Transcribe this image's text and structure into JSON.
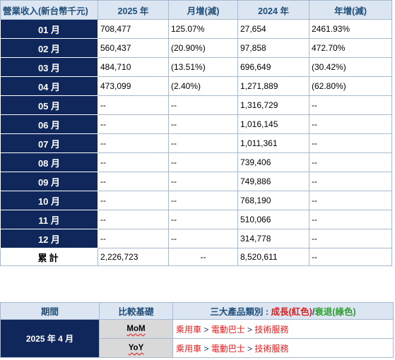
{
  "revenue": {
    "headers": [
      "營業收入(新台幣千元)",
      "2025 年",
      "月增(減)",
      "2024 年",
      "年增(減)"
    ],
    "rows": [
      {
        "month": "01 月",
        "y2025": "708,477",
        "mom": "125.07%",
        "y2024": "27,654",
        "yoy": "2461.93%"
      },
      {
        "month": "02 月",
        "y2025": "560,437",
        "mom": "(20.90%)",
        "y2024": "97,858",
        "yoy": "472.70%"
      },
      {
        "month": "03 月",
        "y2025": "484,710",
        "mom": "(13.51%)",
        "y2024": "696,649",
        "yoy": "(30.42%)"
      },
      {
        "month": "04 月",
        "y2025": "473,099",
        "mom": "(2.40%)",
        "y2024": "1,271,889",
        "yoy": "(62.80%)"
      },
      {
        "month": "05 月",
        "y2025": "--",
        "mom": "--",
        "y2024": "1,316,729",
        "yoy": "--"
      },
      {
        "month": "06 月",
        "y2025": "--",
        "mom": "--",
        "y2024": "1,016,145",
        "yoy": "--"
      },
      {
        "month": "07 月",
        "y2025": "--",
        "mom": "--",
        "y2024": "1,011,361",
        "yoy": "--"
      },
      {
        "month": "08 月",
        "y2025": "--",
        "mom": "--",
        "y2024": "739,406",
        "yoy": "--"
      },
      {
        "month": "09 月",
        "y2025": "--",
        "mom": "--",
        "y2024": "749,886",
        "yoy": "--"
      },
      {
        "month": "10 月",
        "y2025": "--",
        "mom": "--",
        "y2024": "768,190",
        "yoy": "--"
      },
      {
        "month": "11 月",
        "y2025": "--",
        "mom": "--",
        "y2024": "510,066",
        "yoy": "--"
      },
      {
        "month": "12 月",
        "y2025": "--",
        "mom": "--",
        "y2024": "314,778",
        "yoy": "--"
      }
    ],
    "total": {
      "label": "累計",
      "y2025": "2,226,723",
      "mom": "--",
      "y2024": "8,520,611",
      "yoy": "--"
    }
  },
  "comparison": {
    "headers": {
      "period": "期間",
      "basis": "比較基礎",
      "category_prefix": "三大產品類別 : ",
      "category_growth": "成長(紅色)",
      "category_sep": "/",
      "category_decline": "衰退(綠色)"
    },
    "period": "2025 年 4 月",
    "rows": [
      {
        "basis": "MoM",
        "p1": "乘用車",
        "sep1": " > ",
        "p2": "電動巴士",
        "sep2": " > ",
        "p3": "技術服務"
      },
      {
        "basis": "YoY",
        "p1": "乘用車",
        "sep1": " > ",
        "p2": "電動巴士",
        "sep2": " > ",
        "p3": "技術服務"
      }
    ]
  },
  "colors": {
    "header_bg": "#dce6f2",
    "header_text": "#1f4e79",
    "month_bg": "#10275c",
    "growth": "#e02020",
    "decline": "#2e9e2e",
    "basis_bg": "#d9d9d9"
  }
}
